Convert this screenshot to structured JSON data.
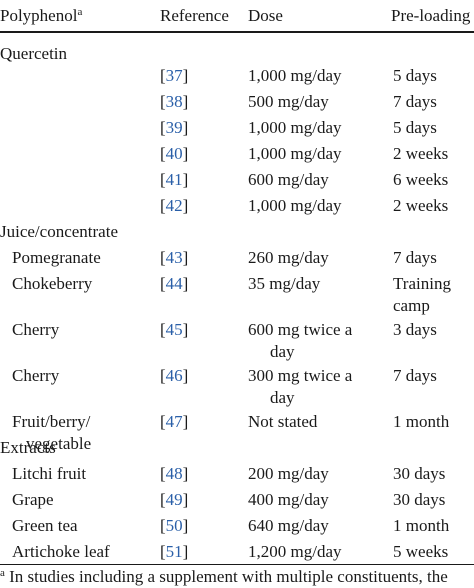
{
  "header": {
    "polyphenol": "Polyphenol",
    "polyphenol_sup": "a",
    "reference": "Reference",
    "dose": "Dose",
    "preloading": "Pre-loading"
  },
  "groups": {
    "quercetin": "Quercetin",
    "juice": "Juice/concentrate",
    "extracts": "Extracts"
  },
  "rows": {
    "q1": {
      "ref": "37",
      "dose": "1,000 mg/day",
      "pre": "5 days"
    },
    "q2": {
      "ref": "38",
      "dose": "500 mg/day",
      "pre": "7 days"
    },
    "q3": {
      "ref": "39",
      "dose": "1,000 mg/day",
      "pre": "5 days"
    },
    "q4": {
      "ref": "40",
      "dose": "1,000 mg/day",
      "pre": "2 weeks"
    },
    "q5": {
      "ref": "41",
      "dose": "600 mg/day",
      "pre": "6 weeks"
    },
    "q6": {
      "ref": "42",
      "dose": "1,000 mg/day",
      "pre": "2 weeks"
    },
    "pomegranate": {
      "name": "Pomegranate",
      "ref": "43",
      "dose": "260 mg/day",
      "pre": "7 days"
    },
    "chokeberry": {
      "name": "Chokeberry",
      "ref": "44",
      "dose": "35 mg/day",
      "pre1": "Training",
      "pre2": "camp"
    },
    "cherry1": {
      "name": "Cherry",
      "ref": "45",
      "dose1": "600 mg twice a",
      "dose2": "day",
      "pre": "3 days"
    },
    "cherry2": {
      "name": "Cherry",
      "ref": "46",
      "dose1": "300 mg twice a",
      "dose2": "day",
      "pre": "7 days"
    },
    "fruit": {
      "name1": "Fruit/berry/",
      "name2": "vegetable",
      "ref": "47",
      "dose": "Not stated",
      "pre": "1 month"
    },
    "litchi": {
      "name": "Litchi fruit",
      "ref": "48",
      "dose": "200 mg/day",
      "pre": "30 days"
    },
    "grape": {
      "name": "Grape",
      "ref": "49",
      "dose": "400 mg/day",
      "pre": "30 days"
    },
    "greentea": {
      "name": "Green tea",
      "ref": "50",
      "dose": "640 mg/day",
      "pre": "1 month"
    },
    "artichoke": {
      "name": "Artichoke leaf",
      "ref": "51",
      "dose": "1,200 mg/day",
      "pre": "5 weeks"
    }
  },
  "footnote": {
    "sup": "a",
    "text": "In studies including a supplement with multiple constituents, the"
  }
}
